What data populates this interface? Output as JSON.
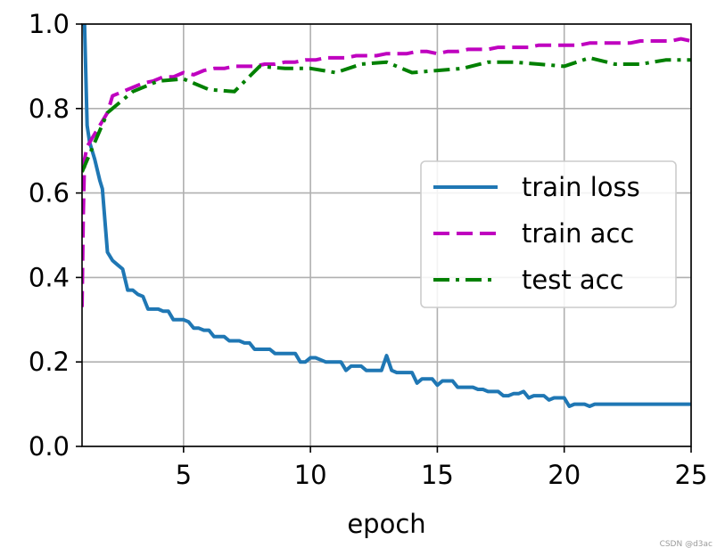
{
  "chart_data": {
    "type": "line",
    "xlabel": "epoch",
    "ylabel": "",
    "xlim": [
      1,
      25
    ],
    "ylim": [
      0.0,
      1.0
    ],
    "xticks": [
      5,
      10,
      15,
      20,
      25
    ],
    "yticks": [
      0.0,
      0.2,
      0.4,
      0.6,
      0.8,
      1.0
    ],
    "xtick_labels": [
      "5",
      "10",
      "15",
      "20",
      "25"
    ],
    "ytick_labels": [
      "0.0",
      "0.2",
      "0.4",
      "0.6",
      "0.8",
      "1.0"
    ],
    "grid": true,
    "legend_position": "center-right",
    "series": [
      {
        "name": "train loss",
        "color": "#1f77b4",
        "style": "solid",
        "x": [
          1.0,
          1.1,
          1.2,
          1.3,
          1.5,
          1.7,
          1.8,
          2.0,
          2.2,
          2.4,
          2.6,
          2.8,
          3.0,
          3.2,
          3.4,
          3.6,
          3.8,
          4.0,
          4.2,
          4.4,
          4.6,
          4.8,
          5.0,
          5.2,
          5.4,
          5.6,
          5.8,
          6.0,
          6.2,
          6.4,
          6.6,
          6.8,
          7.0,
          7.2,
          7.4,
          7.6,
          7.8,
          8.0,
          8.2,
          8.4,
          8.6,
          8.8,
          9.0,
          9.2,
          9.4,
          9.6,
          9.8,
          10.0,
          10.2,
          10.4,
          10.6,
          10.8,
          11.0,
          11.2,
          11.4,
          11.6,
          11.8,
          12.0,
          12.2,
          12.4,
          12.6,
          12.8,
          13.0,
          13.2,
          13.4,
          13.6,
          13.8,
          14.0,
          14.2,
          14.4,
          14.6,
          14.8,
          15.0,
          15.2,
          15.4,
          15.6,
          15.8,
          16.0,
          16.2,
          16.4,
          16.6,
          16.8,
          17.0,
          17.2,
          17.4,
          17.6,
          17.8,
          18.0,
          18.2,
          18.4,
          18.6,
          18.8,
          19.0,
          19.2,
          19.4,
          19.6,
          19.8,
          20.0,
          20.2,
          20.4,
          20.6,
          20.8,
          21.0,
          21.2,
          21.4,
          21.6,
          21.8,
          22.0,
          22.2,
          22.4,
          22.6,
          22.8,
          23.0,
          23.2,
          23.4,
          23.6,
          23.8,
          24.0,
          24.2,
          24.4,
          24.6,
          24.8,
          25.0
        ],
        "y": [
          1.0,
          1.0,
          0.76,
          0.72,
          0.68,
          0.63,
          0.61,
          0.46,
          0.44,
          0.43,
          0.42,
          0.37,
          0.37,
          0.36,
          0.355,
          0.325,
          0.325,
          0.325,
          0.32,
          0.32,
          0.3,
          0.3,
          0.3,
          0.295,
          0.28,
          0.28,
          0.275,
          0.275,
          0.26,
          0.26,
          0.26,
          0.25,
          0.25,
          0.25,
          0.245,
          0.245,
          0.23,
          0.23,
          0.23,
          0.23,
          0.22,
          0.22,
          0.22,
          0.22,
          0.22,
          0.2,
          0.2,
          0.21,
          0.21,
          0.205,
          0.2,
          0.2,
          0.2,
          0.2,
          0.18,
          0.19,
          0.19,
          0.19,
          0.18,
          0.18,
          0.18,
          0.18,
          0.215,
          0.18,
          0.175,
          0.175,
          0.175,
          0.175,
          0.15,
          0.16,
          0.16,
          0.16,
          0.145,
          0.155,
          0.155,
          0.155,
          0.14,
          0.14,
          0.14,
          0.14,
          0.135,
          0.135,
          0.13,
          0.13,
          0.13,
          0.12,
          0.12,
          0.125,
          0.125,
          0.13,
          0.115,
          0.12,
          0.12,
          0.12,
          0.11,
          0.115,
          0.115,
          0.115,
          0.095,
          0.1,
          0.1,
          0.1,
          0.095,
          0.1,
          0.1,
          0.1,
          0.1,
          0.1,
          0.1,
          0.1,
          0.1,
          0.1,
          0.1,
          0.1,
          0.1,
          0.1,
          0.1,
          0.1,
          0.1,
          0.1,
          0.1,
          0.1,
          0.1
        ]
      },
      {
        "name": "train acc",
        "color": "#bf00bf",
        "style": "dashed",
        "x": [
          1.0,
          1.05,
          1.1,
          1.2,
          1.4,
          1.6,
          1.8,
          2.0,
          2.2,
          2.6,
          3.0,
          3.4,
          3.8,
          4.2,
          4.6,
          5.0,
          5.4,
          5.8,
          6.2,
          6.6,
          7.0,
          7.4,
          7.8,
          8.2,
          8.6,
          9.0,
          9.4,
          9.8,
          10.2,
          10.6,
          11.0,
          11.4,
          11.8,
          12.2,
          12.6,
          13.0,
          13.4,
          13.8,
          14.2,
          14.6,
          15.0,
          15.4,
          15.8,
          16.2,
          16.6,
          17.0,
          17.4,
          17.8,
          18.2,
          18.6,
          19.0,
          19.4,
          19.8,
          20.2,
          20.6,
          21.0,
          21.4,
          21.8,
          22.2,
          22.6,
          23.0,
          23.4,
          23.8,
          24.2,
          24.6,
          25.0
        ],
        "y": [
          0.33,
          0.55,
          0.68,
          0.71,
          0.73,
          0.75,
          0.77,
          0.79,
          0.83,
          0.84,
          0.85,
          0.86,
          0.865,
          0.875,
          0.875,
          0.885,
          0.88,
          0.89,
          0.895,
          0.895,
          0.9,
          0.9,
          0.9,
          0.905,
          0.905,
          0.91,
          0.91,
          0.915,
          0.915,
          0.92,
          0.92,
          0.92,
          0.925,
          0.925,
          0.925,
          0.93,
          0.93,
          0.93,
          0.935,
          0.935,
          0.93,
          0.935,
          0.935,
          0.94,
          0.94,
          0.94,
          0.945,
          0.945,
          0.945,
          0.945,
          0.95,
          0.95,
          0.95,
          0.95,
          0.95,
          0.955,
          0.955,
          0.955,
          0.955,
          0.955,
          0.96,
          0.96,
          0.96,
          0.96,
          0.965,
          0.96
        ]
      },
      {
        "name": "test acc",
        "color": "#008000",
        "style": "dashdot",
        "x": [
          1,
          2,
          3,
          4,
          5,
          6,
          7,
          8,
          9,
          10,
          11,
          12,
          13,
          14,
          15,
          16,
          17,
          18,
          19,
          20,
          21,
          22,
          23,
          24,
          25
        ],
        "y": [
          0.65,
          0.79,
          0.84,
          0.865,
          0.87,
          0.845,
          0.84,
          0.9,
          0.895,
          0.895,
          0.885,
          0.905,
          0.91,
          0.885,
          0.89,
          0.895,
          0.91,
          0.91,
          0.905,
          0.9,
          0.92,
          0.905,
          0.905,
          0.915,
          0.915
        ]
      }
    ]
  },
  "watermark": "CSDN @d3ac"
}
